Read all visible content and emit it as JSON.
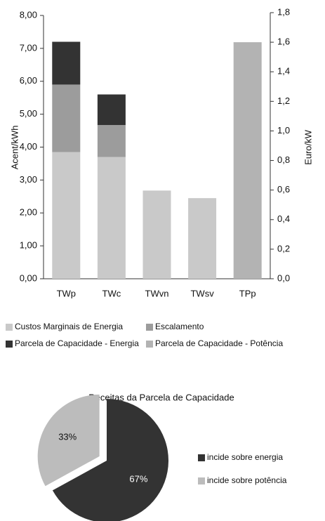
{
  "chart_data": [
    {
      "type": "stacked_bar",
      "categories": [
        "TWp",
        "TWc",
        "TWvn",
        "TWsv",
        "TPp"
      ],
      "ylabel": "Acent/kWh",
      "y2label": "Euro/kW",
      "ylim": [
        0,
        8
      ],
      "yticks": [
        {
          "value": 0,
          "label": "0,00"
        },
        {
          "value": 1,
          "label": "1,00"
        },
        {
          "value": 2,
          "label": "2,00"
        },
        {
          "value": 3,
          "label": "3,00"
        },
        {
          "value": 4,
          "label": "4,00"
        },
        {
          "value": 5,
          "label": "5,00"
        },
        {
          "value": 6,
          "label": "6,00"
        },
        {
          "value": 7,
          "label": "7,00"
        },
        {
          "value": 8,
          "label": "8,00"
        }
      ],
      "y2lim": [
        0,
        1.8
      ],
      "y2ticks": [
        {
          "value": 0,
          "label": "0,0"
        },
        {
          "value": 0.2,
          "label": "0,2"
        },
        {
          "value": 0.4,
          "label": "0,4"
        },
        {
          "value": 0.6,
          "label": "0,6"
        },
        {
          "value": 0.8,
          "label": "0,8"
        },
        {
          "value": 1.0,
          "label": "1,0"
        },
        {
          "value": 1.2,
          "label": "1,2"
        },
        {
          "value": 1.4,
          "label": "1,4"
        },
        {
          "value": 1.6,
          "label": "1,6"
        },
        {
          "value": 1.8,
          "label": "1,8"
        }
      ],
      "series": [
        {
          "name": "Custos Marginais de Energia",
          "color": "#c9c9c9",
          "values": [
            3.85,
            3.7,
            2.68,
            2.45,
            null
          ]
        },
        {
          "name": "Escalamento",
          "color": "#9c9c9c",
          "values": [
            2.05,
            0.97,
            null,
            null,
            null
          ]
        },
        {
          "name": "Parcela de Capacidade - Energia",
          "color": "#333333",
          "values": [
            1.3,
            0.93,
            null,
            null,
            null
          ]
        },
        {
          "name": "Parcela de Capacidade - Potência",
          "color": "#b3b3b3",
          "axis": "y2",
          "values": [
            null,
            null,
            null,
            null,
            1.6
          ]
        }
      ]
    },
    {
      "type": "pie",
      "title": "Receitas da Parcela de Capacidade",
      "categories": [
        "incide sobre energia",
        "incide sobre potência"
      ],
      "values": [
        67,
        33
      ],
      "value_labels": [
        "67%",
        "33%"
      ],
      "colors": [
        "#333333",
        "#bcbcbc"
      ]
    }
  ]
}
